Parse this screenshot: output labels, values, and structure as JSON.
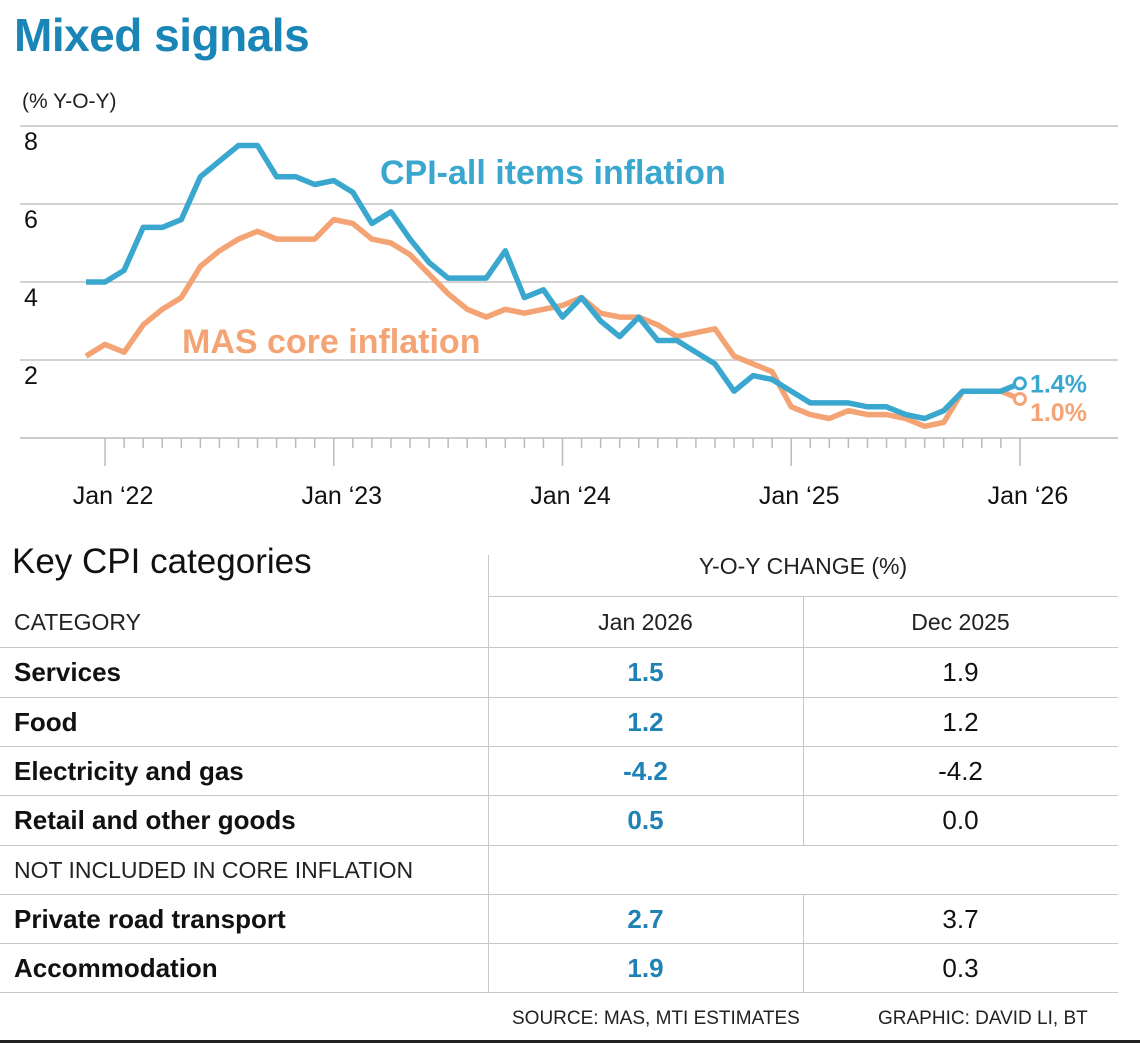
{
  "title": "Mixed signals",
  "colors": {
    "title": "#1a86b8",
    "cpi": "#3aa7cf",
    "core": "#f4a474",
    "table_value": "#1f82b4"
  },
  "chart_data": {
    "type": "line",
    "ylabel": "(% Y-O-Y)",
    "ylim": [
      0,
      8
    ],
    "yticks": [
      "2",
      "4",
      "6",
      "8"
    ],
    "grid": true,
    "x_start": "2021-12",
    "x_end": "2026-01",
    "xtick_labels": [
      "Jan ‘22",
      "Jan ‘23",
      "Jan ‘24",
      "Jan ‘25",
      "Jan ‘26"
    ],
    "series": [
      {
        "name": "CPI-all items inflation",
        "end_label": "1.4%",
        "values": [
          4.0,
          4.0,
          4.3,
          5.4,
          5.4,
          5.6,
          6.7,
          7.1,
          7.5,
          7.5,
          6.7,
          6.7,
          6.5,
          6.6,
          6.3,
          5.5,
          5.8,
          5.1,
          4.5,
          4.1,
          4.1,
          4.1,
          4.8,
          3.6,
          3.8,
          3.1,
          3.6,
          3.0,
          2.6,
          3.1,
          2.5,
          2.5,
          2.2,
          1.9,
          1.2,
          1.6,
          1.5,
          1.2,
          0.9,
          0.9,
          0.9,
          0.8,
          0.8,
          0.6,
          0.5,
          0.7,
          1.2,
          1.2,
          1.2,
          1.4
        ]
      },
      {
        "name": "MAS core inflation",
        "end_label": "1.0%",
        "values": [
          2.1,
          2.4,
          2.2,
          2.9,
          3.3,
          3.6,
          4.4,
          4.8,
          5.1,
          5.3,
          5.1,
          5.1,
          5.1,
          5.6,
          5.5,
          5.1,
          5.0,
          4.7,
          4.2,
          3.7,
          3.3,
          3.1,
          3.3,
          3.2,
          3.3,
          3.4,
          3.6,
          3.2,
          3.1,
          3.1,
          2.9,
          2.6,
          2.7,
          2.8,
          2.1,
          1.9,
          1.7,
          0.8,
          0.6,
          0.5,
          0.7,
          0.6,
          0.6,
          0.5,
          0.3,
          0.4,
          1.2,
          1.2,
          1.2,
          1.0
        ]
      }
    ]
  },
  "table": {
    "title": "Key CPI categories",
    "group_header": "Y-O-Y CHANGE (%)",
    "col_category": "CATEGORY",
    "col_jan": "Jan 2026",
    "col_dec": "Dec 2025",
    "rows": [
      {
        "category": "Services",
        "jan": "1.5",
        "dec": "1.9"
      },
      {
        "category": "Food",
        "jan": "1.2",
        "dec": "1.2"
      },
      {
        "category": "Electricity and gas",
        "jan": "-4.2",
        "dec": "-4.2"
      },
      {
        "category": "Retail and other goods",
        "jan": "0.5",
        "dec": "0.0"
      }
    ],
    "section_label": "NOT INCLUDED IN CORE INFLATION",
    "rows2": [
      {
        "category": "Private road transport",
        "jan": "2.7",
        "dec": "3.7"
      },
      {
        "category": "Accommodation",
        "jan": "1.9",
        "dec": "0.3"
      }
    ]
  },
  "source": "SOURCE: MAS, MTI ESTIMATES",
  "credit": "GRAPHIC: DAVID LI, BT"
}
